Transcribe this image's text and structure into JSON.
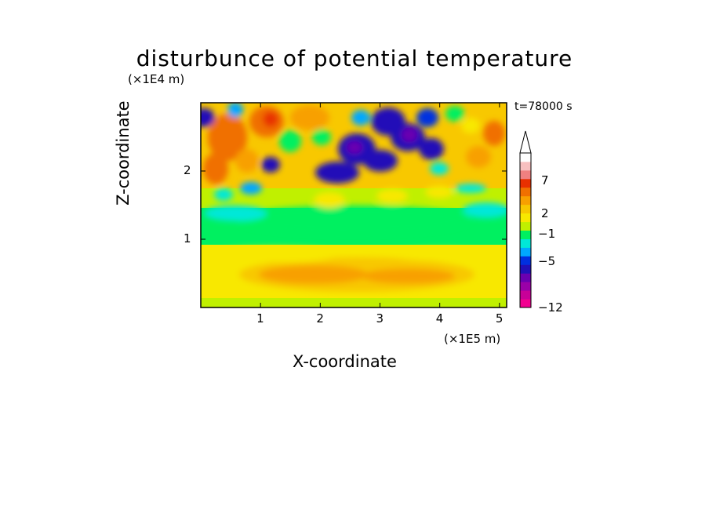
{
  "chart_data": {
    "type": "heatmap",
    "title": "disturbunce of potential temperature",
    "xlabel": "X-coordinate",
    "ylabel": "Z-coordinate",
    "x_unit": "(×1E5 m)",
    "z_unit": "(×1E4 m)",
    "time_label": "t=78000 s",
    "x_ticks": [
      1,
      2,
      3,
      4,
      5
    ],
    "z_ticks": [
      1,
      2
    ],
    "xlim": [
      0,
      5.12
    ],
    "zlim": [
      0,
      3.0
    ],
    "colorbar": {
      "tick_labels": [
        "7",
        "2",
        "−1",
        "−5",
        "−12"
      ],
      "colors": [
        "#f20090",
        "#c80098",
        "#9a00a8",
        "#6a00b0",
        "#2010b8",
        "#0030e0",
        "#00a8ff",
        "#00e8d8",
        "#00f060",
        "#c0f000",
        "#f8e800",
        "#f8c800",
        "#f8a000",
        "#f07000",
        "#e83000",
        "#f08080",
        "#f8c0c0",
        "#ffffff"
      ],
      "extend_top": true
    },
    "field_regions": [
      {
        "region": "z 0.0-0.3 x 0-5.1",
        "value_range": [
          0,
          2
        ],
        "description_level": "weak positive"
      },
      {
        "region": "z 0.3-0.9 x 0.8-4.7",
        "value_range": [
          2,
          3
        ],
        "description_level": "positive"
      },
      {
        "region": "z 0.9-1.5 x 0-5.1",
        "value_range": [
          -1,
          0
        ],
        "description_level": "near zero"
      },
      {
        "region": "z 1.5-2.0 x 0-5.1",
        "value_range": [
          0,
          3
        ],
        "description_level": "weak positive"
      },
      {
        "region": "z 2.0-3.0 x 2.0-4.3",
        "value_range": [
          -8,
          -3
        ],
        "description_level": "negative cells"
      },
      {
        "region": "z 2.0-3.0 x 0-1.8",
        "value_range": [
          3,
          8
        ],
        "description_level": "positive waves"
      }
    ]
  }
}
